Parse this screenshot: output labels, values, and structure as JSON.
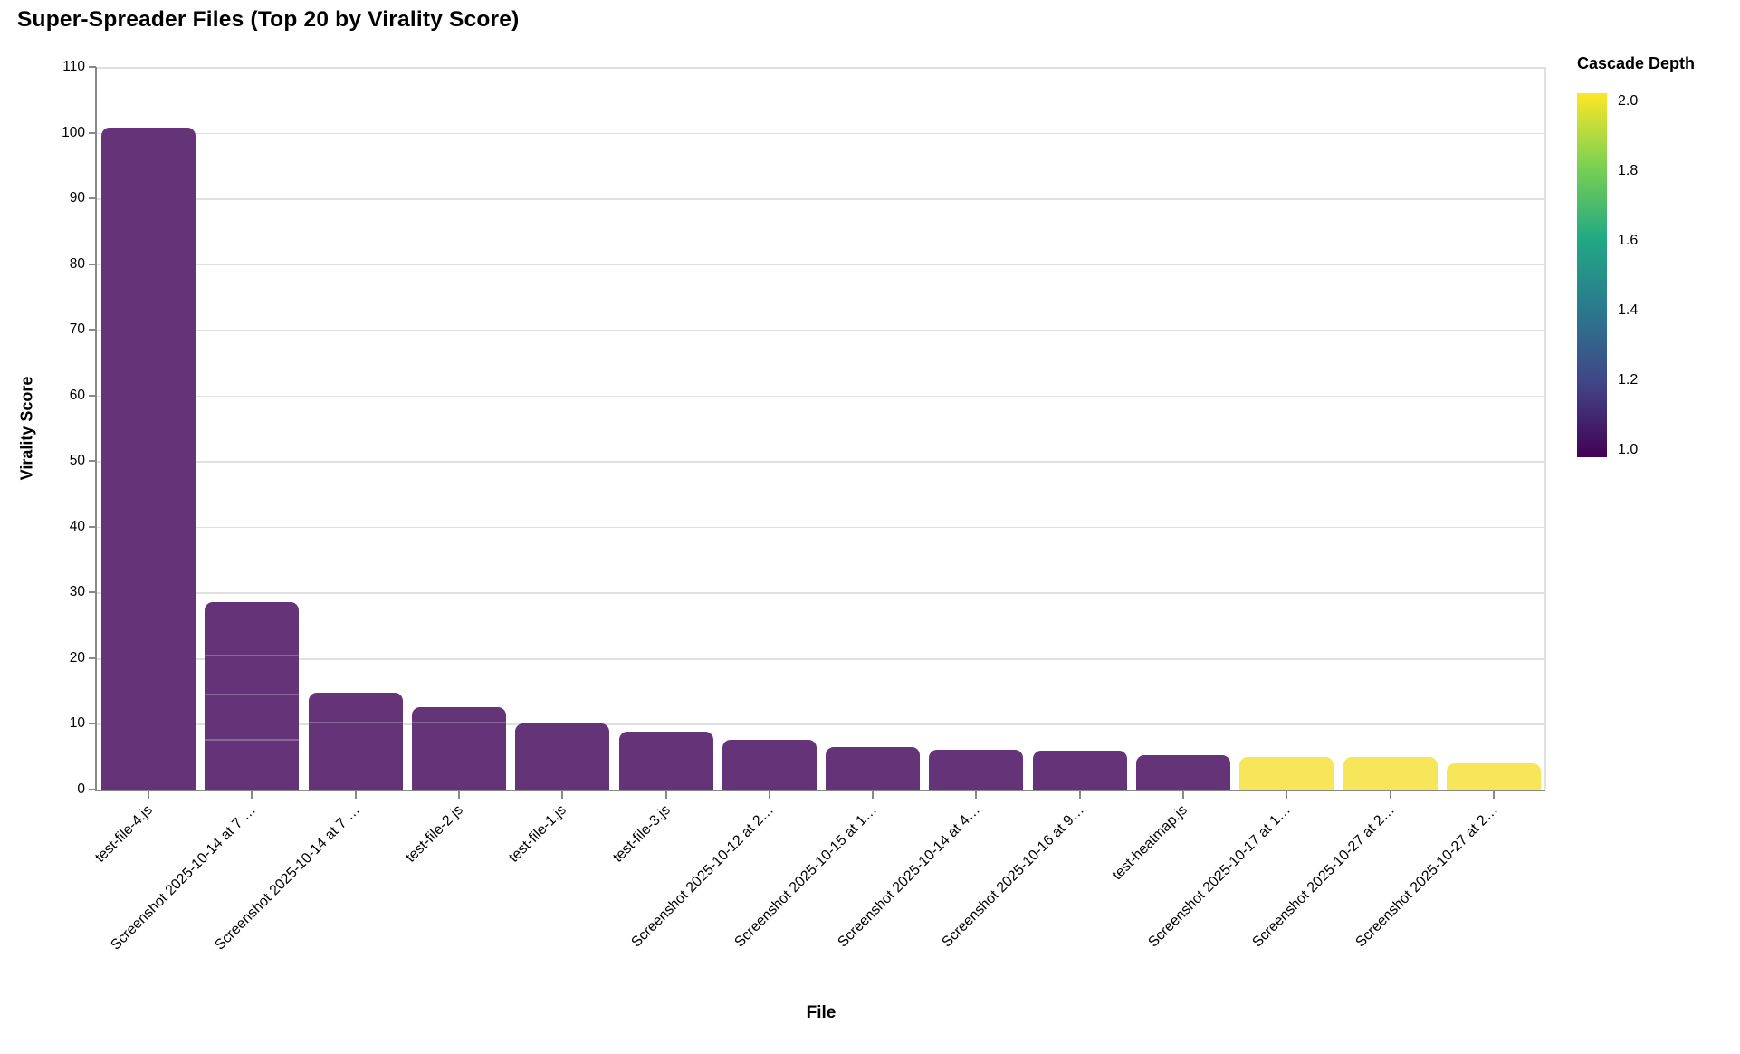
{
  "chart_title": "Super-Spreader Files (Top 20 by Virality Score)",
  "x_axis": {
    "title": "File"
  },
  "y_axis": {
    "title": "Virality Score",
    "ticks": [
      0,
      10,
      20,
      30,
      40,
      50,
      60,
      70,
      80,
      90,
      100,
      110
    ]
  },
  "legend": {
    "title": "Cascade Depth",
    "tick_labels": [
      "2.0",
      "1.8",
      "1.6",
      "1.4",
      "1.2",
      "1.0"
    ],
    "gradient_colors_top_to_bottom": [
      "#fde725",
      "#7ad151",
      "#22a884",
      "#2a788e",
      "#414487",
      "#440154"
    ]
  },
  "colors": {
    "bar_depth_low": "#653377",
    "bar_depth_high": "#f8e65a",
    "gridline": "#e0e0e0",
    "axis": "#888888"
  },
  "chart_data": {
    "type": "bar",
    "title": "Super-Spreader Files (Top 20 by Virality Score)",
    "xlabel": "File",
    "ylabel": "Virality Score",
    "ylim": [
      0,
      110
    ],
    "grid": true,
    "legend_position": "right",
    "color_field": "Cascade Depth",
    "color_domain": [
      1.0,
      2.0
    ],
    "categories": [
      "test-file-4.js",
      "Screenshot 2025-10-14 at 7 …",
      "Screenshot 2025-10-14 at 7 …",
      "test-file-2.js",
      "test-file-1.js",
      "test-file-3.js",
      "Screenshot 2025-10-12 at 2…",
      "Screenshot 2025-10-15 at 1…",
      "Screenshot 2025-10-14 at 4…",
      "Screenshot 2025-10-16 at 9…",
      "test-heatmap.js",
      "Screenshot 2025-10-17 at 1…",
      "Screenshot 2025-10-27 at 2…",
      "Screenshot 2025-10-27 at 2…"
    ],
    "values": [
      100.7,
      28.5,
      14.8,
      12.6,
      10.0,
      8.8,
      7.6,
      6.5,
      6.0,
      5.9,
      5.2,
      4.9,
      4.9,
      4.0
    ],
    "cascade_depth": [
      1.0,
      1.0,
      1.0,
      1.0,
      1.0,
      1.0,
      1.0,
      1.0,
      1.0,
      1.0,
      1.0,
      2.0,
      2.0,
      2.0
    ],
    "stack_segment_boundaries": {
      "1": [
        7.5,
        14.3,
        20.3
      ],
      "2": [
        10.0
      ],
      "3": [
        10.0
      ]
    }
  }
}
